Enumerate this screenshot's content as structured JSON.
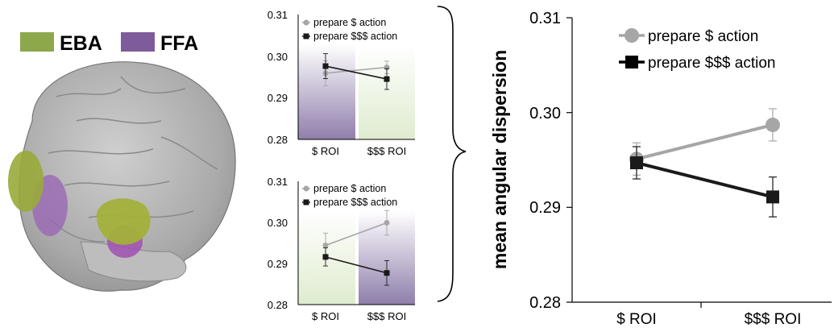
{
  "regions_legend": {
    "items": [
      {
        "label": "EBA",
        "color": "#8da84a"
      },
      {
        "label": "FFA",
        "color": "#7e5b9a"
      }
    ]
  },
  "colors": {
    "prepare_small": "#a6a6a6",
    "prepare_large": "#1a1a1a",
    "eba_shade": "#e3eedb",
    "ffa_shade": "#8a76a6"
  },
  "chart_data": [
    {
      "type": "line",
      "title": "",
      "xlabel": "",
      "ylabel": "",
      "categories": [
        "$ ROI",
        "$$$ ROI"
      ],
      "ylim": [
        0.28,
        0.31
      ],
      "yticks": [
        "0.28",
        "0.29",
        "0.30",
        "0.31"
      ],
      "background_regions": [
        "FFA",
        "EBA"
      ],
      "legend": "top-left",
      "series": [
        {
          "name": "prepare $ action",
          "values": [
            0.2959,
            0.2973
          ],
          "errors": [
            0.003,
            0.0015
          ]
        },
        {
          "name": "prepare $$$ action",
          "values": [
            0.2976,
            0.2945
          ],
          "errors": [
            0.003,
            0.0025
          ]
        }
      ]
    },
    {
      "type": "line",
      "title": "",
      "xlabel": "",
      "ylabel": "",
      "categories": [
        "$ ROI",
        "$$$ ROI"
      ],
      "ylim": [
        0.28,
        0.31
      ],
      "yticks": [
        "0.28",
        "0.29",
        "0.30",
        "0.31"
      ],
      "background_regions": [
        "EBA",
        "FFA"
      ],
      "legend": "top-left",
      "series": [
        {
          "name": "prepare $ action",
          "values": [
            0.2944,
            0.2999
          ],
          "errors": [
            0.003,
            0.003
          ]
        },
        {
          "name": "prepare $$$ action",
          "values": [
            0.2916,
            0.2877
          ],
          "errors": [
            0.0022,
            0.003
          ]
        }
      ]
    },
    {
      "type": "line",
      "title": "",
      "xlabel": "",
      "ylabel": "mean angular dispersion",
      "categories": [
        "$ ROI",
        "$$$ ROI"
      ],
      "ylim": [
        0.28,
        0.31
      ],
      "yticks": [
        "0.28",
        "0.29",
        "0.30",
        "0.31"
      ],
      "legend": "top-left",
      "series": [
        {
          "name": "prepare $ action",
          "values": [
            0.2951,
            0.2987
          ],
          "errors": [
            0.0017,
            0.0017
          ]
        },
        {
          "name": "prepare $$$ action",
          "values": [
            0.2947,
            0.2911
          ],
          "errors": [
            0.0017,
            0.0021
          ]
        }
      ]
    }
  ]
}
